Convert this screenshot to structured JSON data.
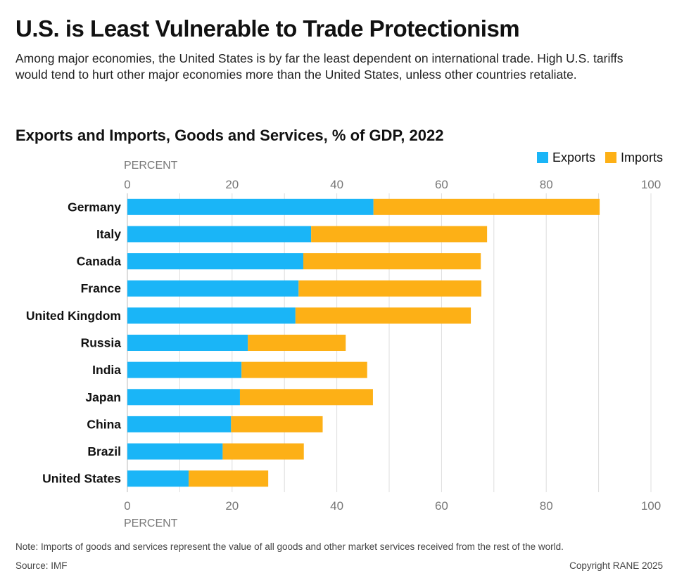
{
  "title": "U.S. is Least Vulnerable to Trade Protectionism",
  "subtitle": "Among major economies, the United States is by far the least dependent on international trade. High U.S. tariffs would tend to hurt other major economies more than the United States, unless other countries retaliate.",
  "note": "Note: Imports of goods and services represent the value of all goods and other market services received from the rest of the world.",
  "source": "Source: IMF",
  "copyright": "Copyright RANE 2025",
  "chart_data": {
    "type": "bar",
    "orientation": "horizontal",
    "stacked": true,
    "title": "Exports and Imports, Goods and Services, % of GDP, 2022",
    "xlabel": "PERCENT",
    "xlim": [
      0,
      100
    ],
    "xticks": [
      0,
      20,
      40,
      60,
      80,
      100
    ],
    "grid": true,
    "legend_placement": "top-right",
    "categories": [
      "Germany",
      "Italy",
      "Canada",
      "France",
      "United Kingdom",
      "Russia",
      "India",
      "Japan",
      "China",
      "Brazil",
      "United States"
    ],
    "series": [
      {
        "name": "Exports",
        "color": "#1ab5f7",
        "values": [
          47.0,
          35.1,
          33.6,
          32.7,
          32.1,
          23.0,
          21.8,
          21.5,
          19.8,
          18.2,
          11.7
        ]
      },
      {
        "name": "Imports",
        "color": "#fdb016",
        "values": [
          43.2,
          33.6,
          33.9,
          34.9,
          33.5,
          18.7,
          24.0,
          25.4,
          17.5,
          15.5,
          15.2
        ]
      }
    ]
  }
}
